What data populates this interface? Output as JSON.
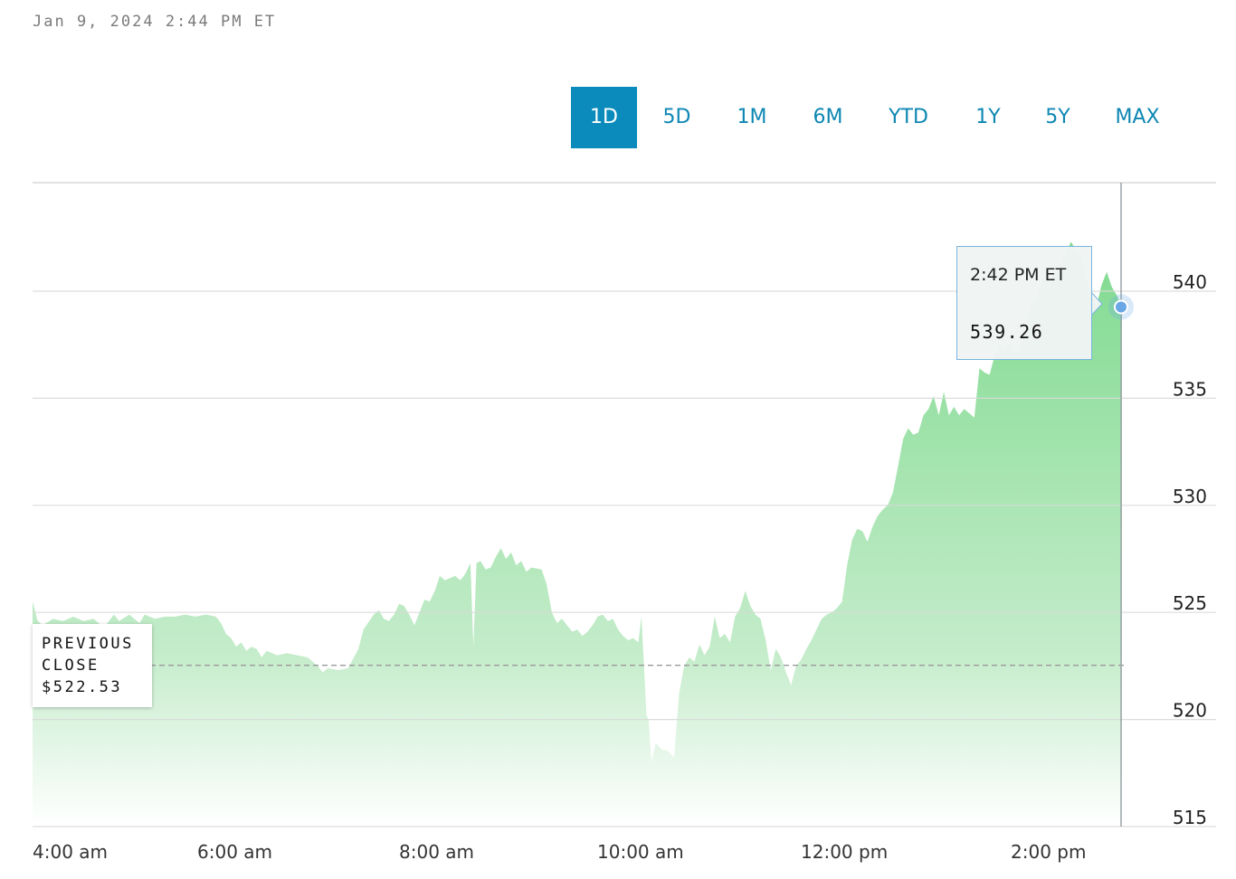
{
  "header": {
    "timestamp": "Jan 9, 2024 2:44 PM ET"
  },
  "range_tabs": [
    {
      "label": "1D",
      "active": true
    },
    {
      "label": "5D",
      "active": false
    },
    {
      "label": "1M",
      "active": false
    },
    {
      "label": "6M",
      "active": false
    },
    {
      "label": "YTD",
      "active": false
    },
    {
      "label": "1Y",
      "active": false
    },
    {
      "label": "5Y",
      "active": false
    },
    {
      "label": "MAX",
      "active": false
    }
  ],
  "previous_close": {
    "line1": "PREVIOUS",
    "line2": "CLOSE",
    "value_text": "$522.53",
    "value": 522.53
  },
  "tooltip": {
    "time": "2:42 PM ET",
    "value": "539.26"
  },
  "colors": {
    "accent": "#0a8bbb",
    "tab_text": "#0d87b3",
    "area_top": "#7fda8f",
    "area_bottom": "#ffffff",
    "gridline": "#d9d9d9",
    "marker": "#6aa7e6"
  },
  "chart_data": {
    "type": "area",
    "title": "",
    "xlabel": "",
    "ylabel": "",
    "x_ticks": [
      {
        "label": "4:00 am",
        "hour": 4
      },
      {
        "label": "6:00 am",
        "hour": 6
      },
      {
        "label": "8:00 am",
        "hour": 8
      },
      {
        "label": "10:00 am",
        "hour": 10
      },
      {
        "label": "12:00 pm",
        "hour": 12
      },
      {
        "label": "2:00 pm",
        "hour": 14
      }
    ],
    "y_ticks": [
      515,
      520,
      525,
      530,
      535,
      540
    ],
    "ylim": [
      515,
      543
    ],
    "grid": true,
    "baseline": 522.53,
    "x_unit": "hour of day (ET)",
    "series": [
      {
        "points": [
          [
            4.0,
            525.5
          ],
          [
            4.05,
            524.6
          ],
          [
            4.1,
            524.4
          ],
          [
            4.2,
            524.7
          ],
          [
            4.3,
            524.6
          ],
          [
            4.4,
            524.8
          ],
          [
            4.5,
            524.6
          ],
          [
            4.6,
            524.7
          ],
          [
            4.7,
            524.3
          ],
          [
            4.8,
            524.9
          ],
          [
            4.85,
            524.6
          ],
          [
            4.95,
            524.9
          ],
          [
            5.05,
            524.5
          ],
          [
            5.1,
            524.9
          ],
          [
            5.2,
            524.7
          ],
          [
            5.3,
            524.8
          ],
          [
            5.4,
            524.8
          ],
          [
            5.5,
            524.9
          ],
          [
            5.6,
            524.8
          ],
          [
            5.7,
            524.9
          ],
          [
            5.8,
            524.8
          ],
          [
            5.85,
            524.5
          ],
          [
            5.9,
            524.0
          ],
          [
            5.95,
            523.8
          ],
          [
            6.0,
            523.4
          ],
          [
            6.05,
            523.6
          ],
          [
            6.1,
            523.2
          ],
          [
            6.15,
            523.4
          ],
          [
            6.2,
            523.3
          ],
          [
            6.25,
            522.9
          ],
          [
            6.3,
            523.2
          ],
          [
            6.4,
            523.0
          ],
          [
            6.5,
            523.1
          ],
          [
            6.6,
            523.0
          ],
          [
            6.7,
            522.9
          ],
          [
            6.8,
            522.5
          ],
          [
            6.85,
            522.2
          ],
          [
            6.9,
            522.4
          ],
          [
            7.0,
            522.3
          ],
          [
            7.1,
            522.4
          ],
          [
            7.2,
            523.3
          ],
          [
            7.25,
            524.2
          ],
          [
            7.35,
            524.9
          ],
          [
            7.4,
            525.1
          ],
          [
            7.45,
            524.7
          ],
          [
            7.5,
            524.6
          ],
          [
            7.55,
            524.9
          ],
          [
            7.6,
            525.4
          ],
          [
            7.65,
            525.3
          ],
          [
            7.7,
            524.9
          ],
          [
            7.75,
            524.4
          ],
          [
            7.8,
            525.0
          ],
          [
            7.85,
            525.6
          ],
          [
            7.9,
            525.5
          ],
          [
            7.95,
            526.0
          ],
          [
            8.0,
            526.7
          ],
          [
            8.05,
            526.5
          ],
          [
            8.1,
            526.6
          ],
          [
            8.15,
            526.7
          ],
          [
            8.2,
            526.5
          ],
          [
            8.25,
            526.8
          ],
          [
            8.3,
            527.3
          ],
          [
            8.33,
            523.4
          ],
          [
            8.36,
            527.3
          ],
          [
            8.4,
            527.4
          ],
          [
            8.45,
            527.0
          ],
          [
            8.5,
            527.1
          ],
          [
            8.55,
            527.6
          ],
          [
            8.6,
            528.0
          ],
          [
            8.65,
            527.5
          ],
          [
            8.7,
            527.8
          ],
          [
            8.75,
            527.2
          ],
          [
            8.8,
            527.4
          ],
          [
            8.85,
            526.9
          ],
          [
            8.9,
            527.1
          ],
          [
            9.0,
            527.0
          ],
          [
            9.05,
            526.3
          ],
          [
            9.1,
            525.0
          ],
          [
            9.15,
            524.5
          ],
          [
            9.2,
            524.7
          ],
          [
            9.25,
            524.4
          ],
          [
            9.3,
            524.1
          ],
          [
            9.35,
            524.2
          ],
          [
            9.4,
            523.9
          ],
          [
            9.45,
            524.1
          ],
          [
            9.5,
            524.4
          ],
          [
            9.55,
            524.8
          ],
          [
            9.6,
            524.9
          ],
          [
            9.65,
            524.6
          ],
          [
            9.7,
            524.7
          ],
          [
            9.75,
            524.2
          ],
          [
            9.8,
            523.9
          ],
          [
            9.85,
            523.7
          ],
          [
            9.9,
            523.8
          ],
          [
            9.95,
            523.6
          ],
          [
            9.98,
            524.8
          ],
          [
            10.0,
            523.0
          ],
          [
            10.03,
            520.2
          ],
          [
            10.05,
            520.0
          ],
          [
            10.08,
            518.0
          ],
          [
            10.12,
            518.9
          ],
          [
            10.18,
            518.6
          ],
          [
            10.2,
            518.6
          ],
          [
            10.25,
            518.5
          ],
          [
            10.3,
            518.2
          ],
          [
            10.35,
            521.2
          ],
          [
            10.4,
            522.5
          ],
          [
            10.45,
            522.9
          ],
          [
            10.5,
            522.7
          ],
          [
            10.55,
            523.5
          ],
          [
            10.6,
            523.0
          ],
          [
            10.65,
            523.4
          ],
          [
            10.7,
            524.8
          ],
          [
            10.75,
            523.8
          ],
          [
            10.8,
            524.0
          ],
          [
            10.85,
            523.6
          ],
          [
            10.9,
            524.8
          ],
          [
            10.95,
            525.2
          ],
          [
            11.0,
            526.0
          ],
          [
            11.05,
            525.3
          ],
          [
            11.1,
            524.9
          ],
          [
            11.15,
            524.7
          ],
          [
            11.2,
            523.7
          ],
          [
            11.25,
            522.3
          ],
          [
            11.3,
            523.3
          ],
          [
            11.35,
            522.9
          ],
          [
            11.4,
            522.2
          ],
          [
            11.45,
            521.6
          ],
          [
            11.5,
            522.5
          ],
          [
            11.55,
            522.8
          ],
          [
            11.6,
            523.3
          ],
          [
            11.65,
            523.7
          ],
          [
            11.7,
            524.2
          ],
          [
            11.75,
            524.7
          ],
          [
            11.8,
            524.9
          ],
          [
            11.85,
            525.0
          ],
          [
            11.9,
            525.2
          ],
          [
            11.95,
            525.5
          ],
          [
            12.0,
            527.2
          ],
          [
            12.05,
            528.4
          ],
          [
            12.1,
            528.9
          ],
          [
            12.15,
            528.8
          ],
          [
            12.2,
            528.3
          ],
          [
            12.25,
            529.0
          ],
          [
            12.3,
            529.5
          ],
          [
            12.35,
            529.8
          ],
          [
            12.4,
            530.0
          ],
          [
            12.45,
            530.6
          ],
          [
            12.5,
            531.8
          ],
          [
            12.55,
            533.1
          ],
          [
            12.6,
            533.6
          ],
          [
            12.65,
            533.3
          ],
          [
            12.7,
            533.4
          ],
          [
            12.75,
            534.2
          ],
          [
            12.8,
            534.5
          ],
          [
            12.85,
            535.1
          ],
          [
            12.9,
            534.2
          ],
          [
            12.95,
            535.3
          ],
          [
            13.0,
            534.2
          ],
          [
            13.05,
            534.6
          ],
          [
            13.1,
            534.2
          ],
          [
            13.15,
            534.5
          ],
          [
            13.2,
            534.3
          ],
          [
            13.25,
            534.1
          ],
          [
            13.3,
            536.4
          ],
          [
            13.35,
            536.2
          ],
          [
            13.4,
            536.1
          ],
          [
            13.45,
            537.0
          ],
          [
            13.5,
            537.5
          ],
          [
            13.55,
            537.2
          ],
          [
            13.6,
            537.6
          ],
          [
            13.65,
            537.1
          ],
          [
            13.7,
            537.3
          ],
          [
            13.75,
            538.2
          ],
          [
            13.8,
            539.2
          ],
          [
            13.85,
            539.6
          ],
          [
            13.9,
            540.2
          ],
          [
            13.95,
            540.8
          ],
          [
            14.0,
            540.5
          ],
          [
            14.05,
            540.9
          ],
          [
            14.1,
            541.2
          ],
          [
            14.15,
            541.8
          ],
          [
            14.2,
            542.3
          ],
          [
            14.25,
            541.9
          ],
          [
            14.3,
            541.5
          ],
          [
            14.35,
            540.5
          ],
          [
            14.4,
            539.8
          ],
          [
            14.45,
            539.3
          ],
          [
            14.5,
            540.3
          ],
          [
            14.55,
            540.9
          ],
          [
            14.6,
            540.2
          ],
          [
            14.65,
            539.8
          ],
          [
            14.7,
            539.26
          ]
        ]
      }
    ]
  }
}
